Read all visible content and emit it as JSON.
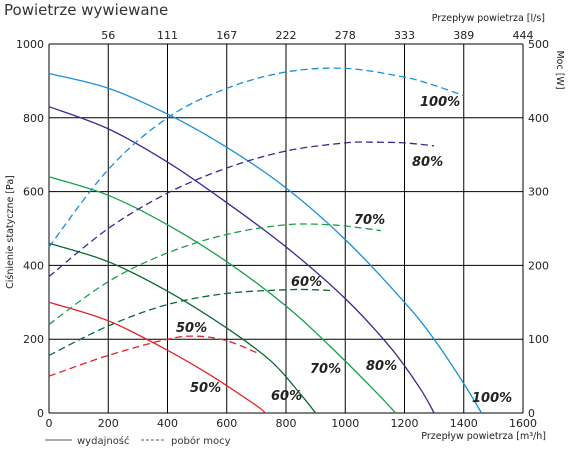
{
  "chart_data": {
    "type": "line",
    "title": "Powietrze wywiewane",
    "xlabel": "Przepływ powietrza [m³/h]",
    "x2label": "Przepływ powietrza [l/s]",
    "ylabel": "Ciśnienie statyczne [Pa]",
    "y2label": "Moc [W]",
    "xlim": [
      0,
      1600
    ],
    "ylim": [
      0,
      1000
    ],
    "y2lim": [
      0,
      500
    ],
    "x_ticks": [
      0,
      200,
      400,
      600,
      800,
      1000,
      1200,
      1400,
      1600
    ],
    "y_ticks": [
      0,
      200,
      400,
      600,
      800,
      1000
    ],
    "y2_ticks": [
      0,
      100,
      200,
      300,
      400,
      500
    ],
    "x2_ticks": [
      "56",
      "111",
      "167",
      "222",
      "278",
      "333",
      "389",
      "444"
    ],
    "grid": true,
    "legend": {
      "position": "bottom-left",
      "entries": [
        {
          "style": "solid",
          "label": "wydajność"
        },
        {
          "style": "dashed",
          "label": "pobór mocy"
        }
      ]
    },
    "pressure_series": [
      {
        "label": "100%",
        "color": "#1a8fd6",
        "x": [
          0,
          200,
          400,
          600,
          800,
          1000,
          1200,
          1300,
          1400,
          1460
        ],
        "y": [
          920,
          880,
          810,
          720,
          610,
          470,
          300,
          200,
          80,
          0
        ]
      },
      {
        "label": "80%",
        "color": "#3a2a90",
        "x": [
          0,
          200,
          400,
          600,
          800,
          1000,
          1150,
          1250,
          1300
        ],
        "y": [
          830,
          770,
          680,
          570,
          450,
          310,
          180,
          70,
          0
        ]
      },
      {
        "label": "70%",
        "color": "#17a04a",
        "x": [
          0,
          200,
          400,
          600,
          800,
          950,
          1100,
          1170
        ],
        "y": [
          640,
          590,
          510,
          410,
          290,
          180,
          60,
          0
        ]
      },
      {
        "label": "60%",
        "color": "#0a6a30",
        "x": [
          0,
          200,
          400,
          600,
          750,
          850,
          900
        ],
        "y": [
          460,
          410,
          330,
          230,
          140,
          50,
          0
        ]
      },
      {
        "label": "50%",
        "color": "#e8202a",
        "x": [
          0,
          200,
          400,
          550,
          700,
          730
        ],
        "y": [
          300,
          250,
          170,
          100,
          20,
          0
        ]
      }
    ],
    "power_series": [
      {
        "label": "100%",
        "color": "#1a8fd6",
        "x": [
          0,
          200,
          400,
          600,
          800,
          1000,
          1200,
          1300,
          1400
        ],
        "y": [
          225,
          330,
          400,
          440,
          462,
          467,
          455,
          444,
          430
        ]
      },
      {
        "label": "80%",
        "color": "#3a2a90",
        "x": [
          0,
          200,
          400,
          600,
          800,
          1000,
          1100,
          1200,
          1300
        ],
        "y": [
          185,
          250,
          298,
          332,
          355,
          366,
          367,
          366,
          362
        ]
      },
      {
        "label": "70%",
        "color": "#17a04a",
        "x": [
          0,
          200,
          400,
          600,
          800,
          950,
          1050,
          1120
        ],
        "y": [
          120,
          178,
          217,
          242,
          255,
          255,
          251,
          247
        ]
      },
      {
        "label": "60%",
        "color": "#0a6a30",
        "x": [
          0,
          200,
          400,
          600,
          800,
          900,
          950
        ],
        "y": [
          78,
          118,
          147,
          162,
          167,
          167,
          166
        ]
      },
      {
        "label": "50%",
        "color": "#e8202a",
        "x": [
          0,
          200,
          400,
          500,
          600,
          700
        ],
        "y": [
          50,
          78,
          100,
          104,
          98,
          82
        ]
      }
    ]
  }
}
